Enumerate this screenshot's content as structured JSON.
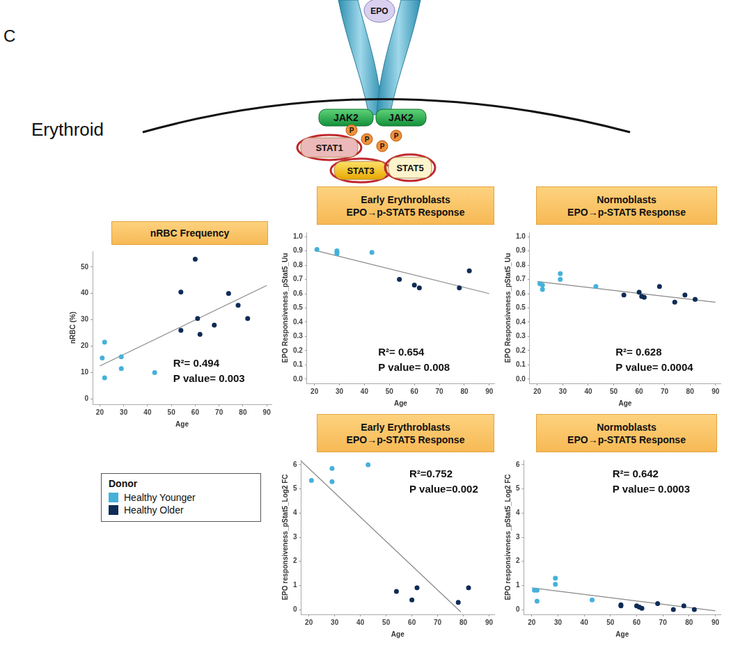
{
  "figure": {
    "panel_label": "C",
    "cell_label": "Erythroid",
    "diagram": {
      "ligand": "EPO",
      "kinases": [
        "JAK2",
        "JAK2"
      ],
      "phospho": [
        "P",
        "P",
        "P",
        "P"
      ],
      "stats": [
        "STAT1",
        "STAT3",
        "STAT5"
      ]
    },
    "legend_title": "Donor"
  },
  "chart_data": [
    {
      "type": "scatter",
      "title": [
        "nRBC Frequency"
      ],
      "x_label": "Age",
      "y_label": "nRBC (%)",
      "xlim": [
        17,
        92
      ],
      "xticks": [
        20,
        30,
        40,
        50,
        60,
        70,
        80,
        90
      ],
      "ylim": [
        -2,
        56
      ],
      "yticks": [
        0,
        10,
        20,
        30,
        40,
        50
      ],
      "grid": false,
      "series": [
        {
          "name": "Healthy Younger",
          "color": "#45b1da",
          "x": [
            21,
            22,
            22,
            29,
            29,
            43
          ],
          "values": [
            15.5,
            21.5,
            8,
            16,
            11.5,
            10
          ]
        },
        {
          "name": "Healthy Older",
          "color": "#0e2c55",
          "x": [
            54,
            54,
            60,
            61,
            62,
            68,
            74,
            78,
            82
          ],
          "values": [
            26,
            40.5,
            53,
            30.5,
            24.5,
            28,
            40,
            35.5,
            30.5
          ]
        }
      ],
      "fit_line": {
        "x": [
          20,
          90
        ],
        "y": [
          12.5,
          43
        ]
      },
      "annotations": [
        "R²= 0.494",
        "P value= 0.003"
      ]
    },
    {
      "type": "scatter",
      "title": [
        "Early Erythroblasts",
        "EPO→p-STAT5 Response"
      ],
      "x_label": "Age",
      "y_label": "EPO Responsiveness_pStat5_Uu",
      "xlim": [
        17,
        92
      ],
      "xticks": [
        20,
        30,
        40,
        50,
        60,
        70,
        80,
        90
      ],
      "ylim": [
        -0.03,
        1.03
      ],
      "yticks": [
        {
          "value": 0,
          "label": "0.0"
        },
        0.1,
        0.2,
        0.3,
        0.4,
        0.5,
        0.6,
        0.7,
        0.8,
        0.9,
        {
          "value": 1,
          "label": "1.0"
        }
      ],
      "grid": false,
      "series": [
        {
          "name": "Healthy Younger",
          "color": "#45b1da",
          "x": [
            21,
            29,
            29,
            29,
            43
          ],
          "values": [
            0.91,
            0.9,
            0.89,
            0.88,
            0.89
          ]
        },
        {
          "name": "Healthy Older",
          "color": "#0e2c55",
          "x": [
            54,
            60,
            62,
            78,
            82
          ],
          "values": [
            0.7,
            0.66,
            0.64,
            0.64,
            0.76
          ]
        }
      ],
      "fit_line": {
        "x": [
          20,
          90
        ],
        "y": [
          0.905,
          0.6
        ]
      },
      "annotations": [
        "R²= 0.654",
        "P value= 0.008"
      ]
    },
    {
      "type": "scatter",
      "title": [
        "Normoblasts",
        "EPO→p-STAT5 Response"
      ],
      "x_label": "Age",
      "y_label": "EPO Responsiveness_pStat5_Uu",
      "xlim": [
        17,
        92
      ],
      "xticks": [
        20,
        30,
        40,
        50,
        60,
        70,
        80,
        90
      ],
      "ylim": [
        -0.03,
        1.03
      ],
      "yticks": [
        {
          "value": 0,
          "label": "0.0"
        },
        0.1,
        0.2,
        0.3,
        0.4,
        0.5,
        0.6,
        0.7,
        0.8,
        0.9,
        {
          "value": 1,
          "label": "1.0"
        }
      ],
      "grid": false,
      "series": [
        {
          "name": "Healthy Younger",
          "color": "#45b1da",
          "x": [
            21,
            22,
            22,
            29,
            29,
            43
          ],
          "values": [
            0.67,
            0.66,
            0.63,
            0.74,
            0.7,
            0.65
          ]
        },
        {
          "name": "Healthy Older",
          "color": "#0e2c55",
          "x": [
            54,
            60,
            61,
            62,
            68,
            74,
            78,
            82
          ],
          "values": [
            0.59,
            0.61,
            0.58,
            0.575,
            0.65,
            0.54,
            0.59,
            0.56
          ]
        }
      ],
      "fit_line": {
        "x": [
          20,
          90
        ],
        "y": [
          0.685,
          0.54
        ]
      },
      "annotations": [
        "R²= 0.628",
        "P value= 0.0004"
      ]
    },
    {
      "type": "scatter",
      "title": [
        "Early Erythroblasts",
        "EPO→p-STAT5 Response"
      ],
      "x_label": "Age",
      "y_label": "EPO responsiveness_pStat5_Log2 FC",
      "xlim": [
        17,
        92
      ],
      "xticks": [
        20,
        30,
        40,
        50,
        60,
        70,
        80,
        90
      ],
      "ylim": [
        -0.2,
        6.2
      ],
      "yticks": [
        0,
        1,
        2,
        3,
        4,
        5,
        6
      ],
      "grid": false,
      "series": [
        {
          "name": "Healthy Younger",
          "color": "#45b1da",
          "x": [
            21,
            29,
            29,
            43
          ],
          "values": [
            5.35,
            5.85,
            5.3,
            6.0
          ]
        },
        {
          "name": "Healthy Older",
          "color": "#0e2c55",
          "x": [
            54,
            60,
            62,
            78,
            82
          ],
          "values": [
            0.75,
            0.4,
            0.9,
            0.3,
            0.9
          ]
        }
      ],
      "fit_line": {
        "x": [
          17,
          79
        ],
        "y": [
          6.15,
          -0.1
        ]
      },
      "annotations": [
        "R²=0.752",
        "P value=0.002"
      ]
    },
    {
      "type": "scatter",
      "title": [
        "Normoblasts",
        "EPO→p-STAT5 Response"
      ],
      "x_label": "Age",
      "y_label": "EPO responsiveness_pStat5_Log2 FC",
      "xlim": [
        17,
        92
      ],
      "xticks": [
        20,
        30,
        40,
        50,
        60,
        70,
        80,
        90
      ],
      "ylim": [
        -0.2,
        6.2
      ],
      "yticks": [
        0,
        1,
        2,
        3,
        4,
        5,
        6
      ],
      "grid": false,
      "series": [
        {
          "name": "Healthy Younger",
          "color": "#45b1da",
          "x": [
            21,
            22,
            22,
            29,
            29,
            43
          ],
          "values": [
            0.8,
            0.8,
            0.35,
            1.3,
            1.05,
            0.4
          ]
        },
        {
          "name": "Healthy Older",
          "color": "#0e2c55",
          "x": [
            54,
            54,
            60,
            61,
            62,
            68,
            74,
            78,
            82
          ],
          "values": [
            0.15,
            0.2,
            0.15,
            0.1,
            0.05,
            0.25,
            0.0,
            0.15,
            0.0
          ]
        }
      ],
      "fit_line": {
        "x": [
          20,
          90
        ],
        "y": [
          0.9,
          -0.05
        ]
      },
      "annotations": [
        "R²= 0.642",
        "P value= 0.0003"
      ]
    }
  ]
}
